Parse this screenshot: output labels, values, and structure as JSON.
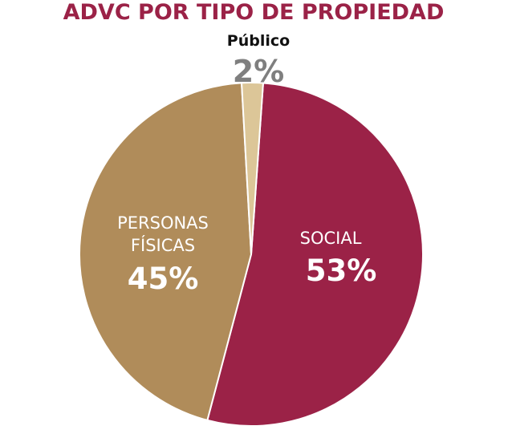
{
  "chart_data": {
    "type": "pie",
    "title": "ADVC POR TIPO DE PROPIEDAD",
    "slices": [
      {
        "label": "SOCIAL",
        "value": 53,
        "value_label": "53%",
        "color": "#9b2247"
      },
      {
        "label_lines": [
          "PERSONAS",
          "FÍSICAS"
        ],
        "value": 45,
        "value_label": "45%",
        "color": "#b08c5a"
      },
      {
        "label": "Público",
        "value": 2,
        "value_label": "2%",
        "color": "#dcc698"
      }
    ]
  },
  "colors": {
    "title": "#9b2247",
    "inside_label": "#ffffff",
    "outside_name": "#111111",
    "outside_value": "#7f7f7f",
    "slice_border": "#ffffff"
  }
}
